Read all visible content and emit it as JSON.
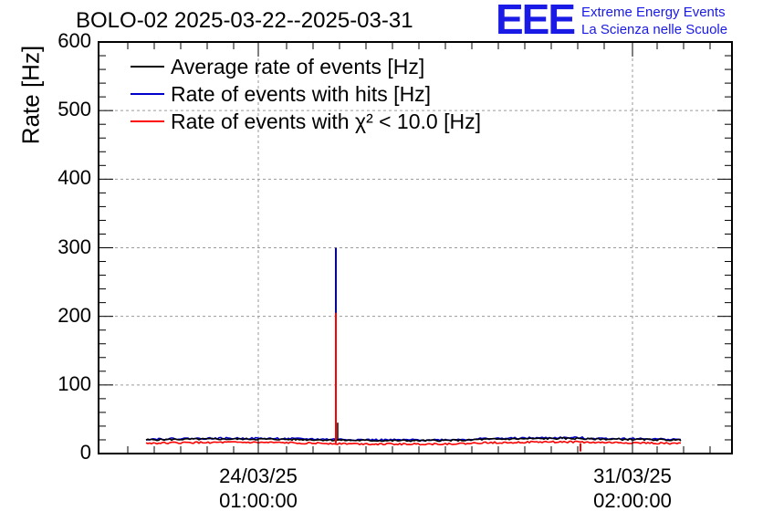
{
  "chart_data": {
    "type": "line",
    "title": "BOLO-02 2025-03-22--2025-03-31",
    "ylabel": "Rate [Hz]",
    "xlabel": "",
    "ylim": [
      0,
      600
    ],
    "yticks": [
      "0",
      "100",
      "200",
      "300",
      "400",
      "500",
      "600"
    ],
    "xticks": [
      {
        "date": "24/03/25",
        "time": "01:00:00"
      },
      {
        "date": "31/03/25",
        "time": "02:00:00"
      }
    ],
    "grid": true,
    "legend_position": "top-left",
    "series": [
      {
        "name": "Average rate of events [Hz]",
        "color": "#000000",
        "baseline": 20,
        "spike": {
          "peak": 188,
          "extra_peak": 45
        }
      },
      {
        "name": "Rate of events with hits [Hz]",
        "color": "#0000cc",
        "baseline": 21,
        "spike": {
          "peak": 300
        }
      },
      {
        "name": "Rate of events with χ² < 10.0 [Hz]",
        "color": "#ff0000",
        "baseline": 15,
        "spike": {
          "peak": 205
        },
        "dip": {
          "value": 3
        }
      }
    ]
  },
  "logo": {
    "mark": "EEE",
    "line1": "Extreme Energy Events",
    "line2": "La Scienza nelle Scuole"
  }
}
